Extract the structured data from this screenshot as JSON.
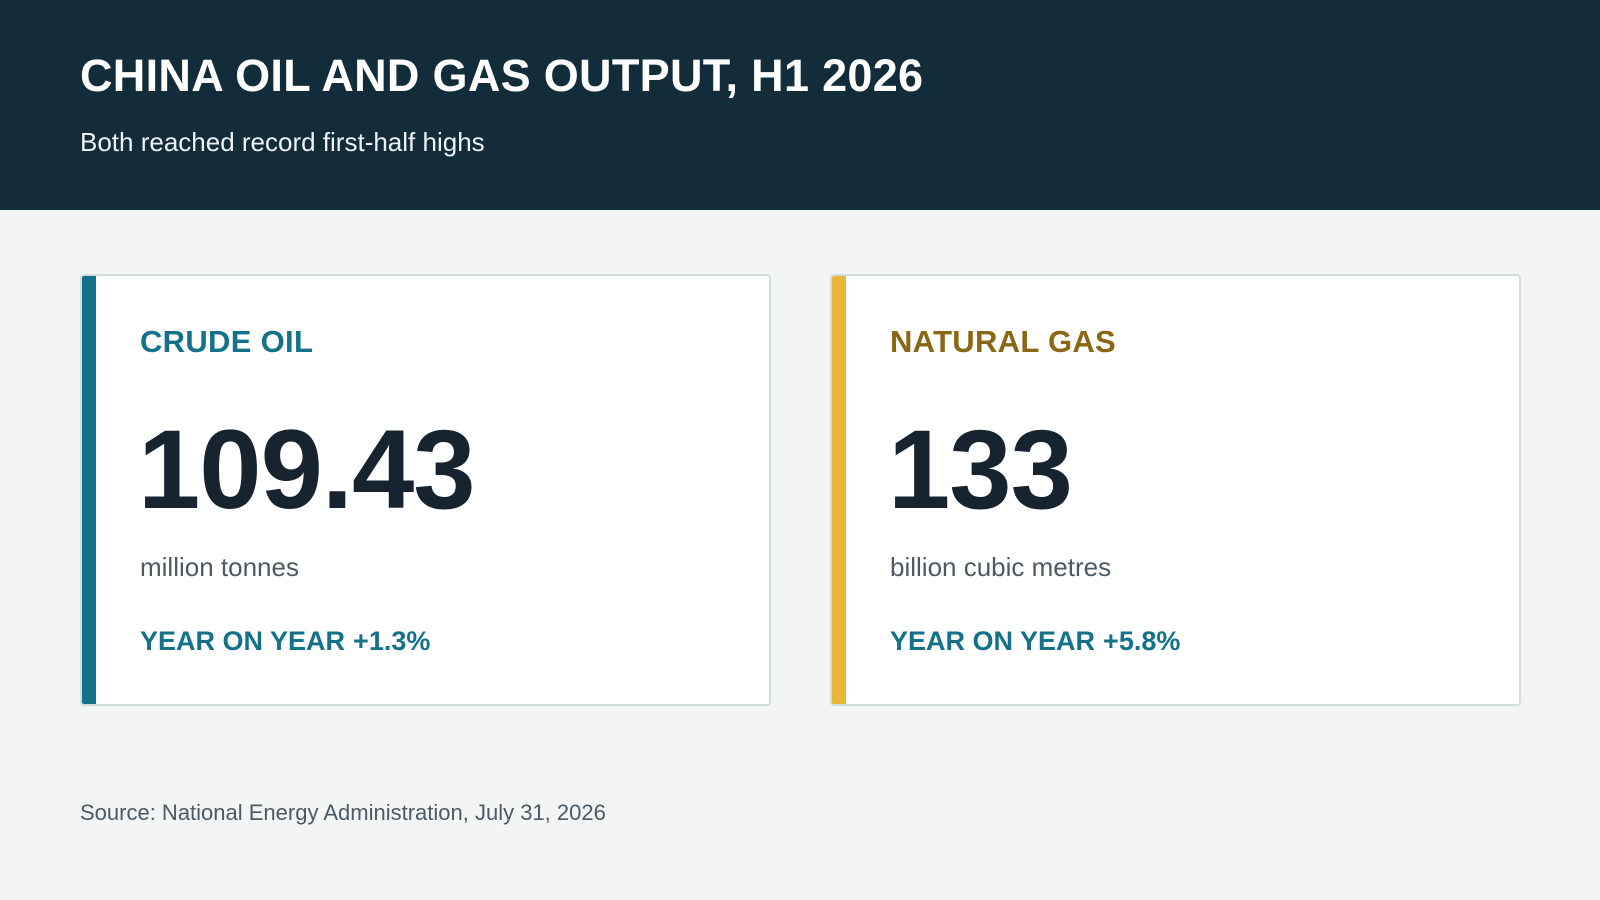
{
  "header": {
    "title": "CHINA OIL AND GAS OUTPUT, H1 2026",
    "subtitle": "Both reached record first-half highs"
  },
  "cards": [
    {
      "label": "CRUDE OIL",
      "value": "109.43",
      "unit": "million tonnes",
      "yoy_label": "YEAR ON YEAR",
      "yoy_value": "+1.3%",
      "accent_color": "#13718a"
    },
    {
      "label": "NATURAL GAS",
      "value": "133",
      "unit": "billion cubic metres",
      "yoy_label": "YEAR ON YEAR",
      "yoy_value": "+5.8%",
      "accent_color": "#eab638"
    }
  ],
  "footer": {
    "source": "Source: National Energy Administration, July 31, 2026"
  },
  "colors": {
    "header_bg": "#122c39",
    "page_bg": "#f3f5f4",
    "oil_accent": "#13718a",
    "gas_accent": "#eab638",
    "gas_label": "#8a6714",
    "value_text": "#172430"
  }
}
